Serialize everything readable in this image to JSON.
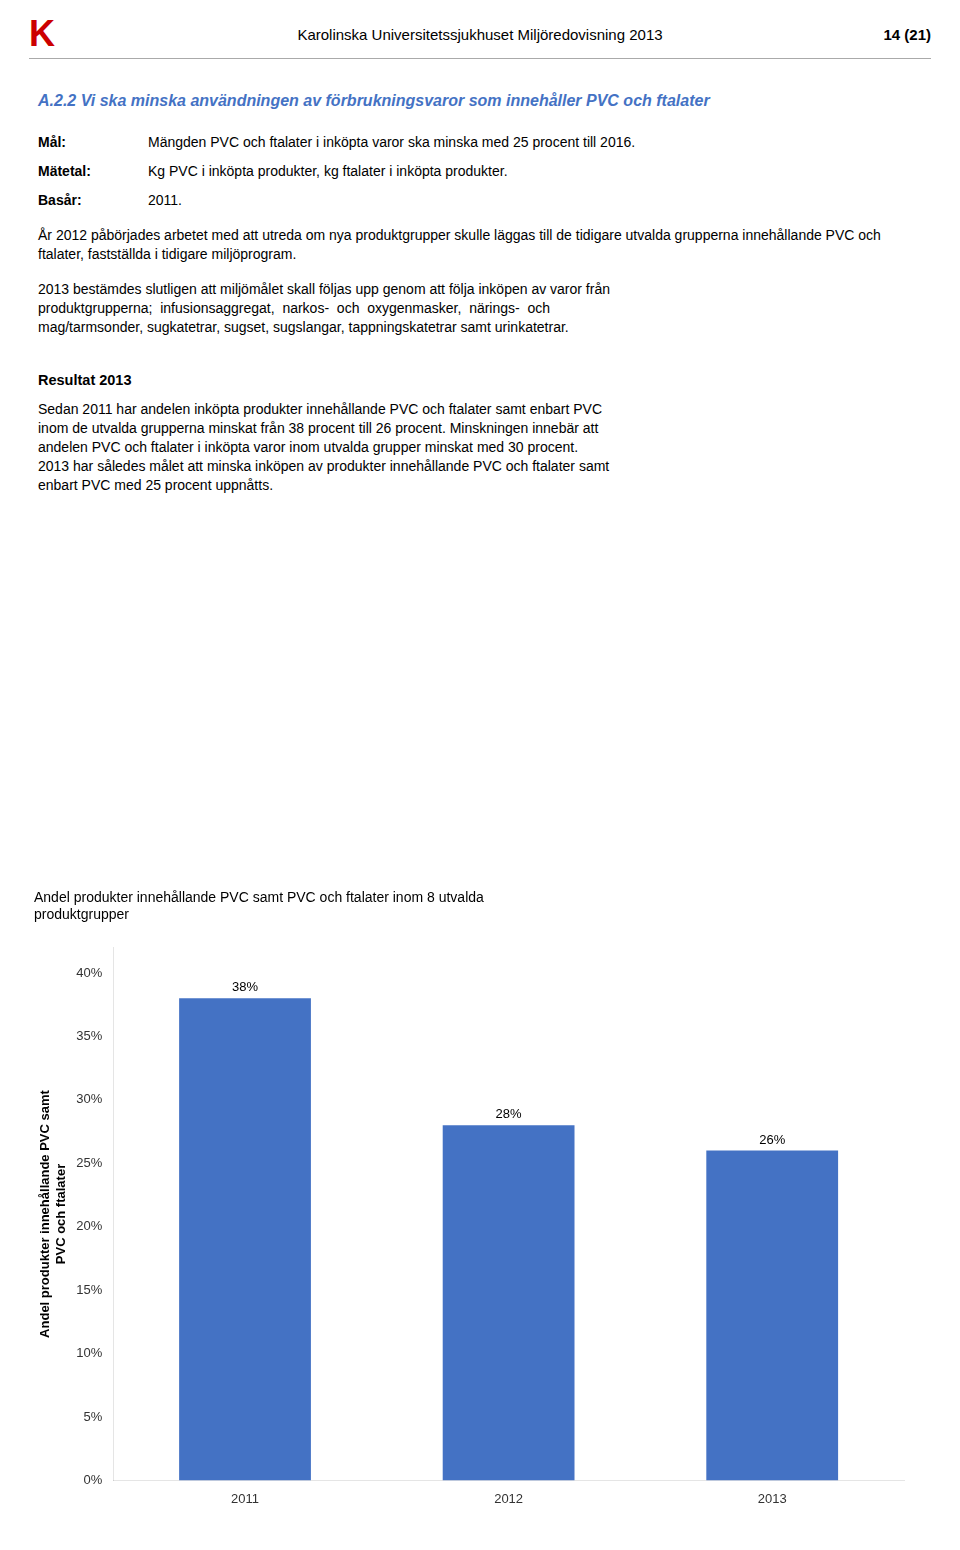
{
  "header": "Karolinska Universitetssjukhuset Miljöredovisning 2013",
  "page_number": "14 (21)",
  "logo": "K",
  "heading": "A.2.2 Vi ska minska användningen av förbrukningsvaror som innehåller PVC och ftalater",
  "heading_color": "#4472C4",
  "facts": [
    {
      "label": "Mål:",
      "text": "Mängden PVC och ftalater i inköpta varor ska minska med 25 procent till 2016."
    },
    {
      "label": "Mätetal:",
      "text": "Kg PVC i inköpta produkter, kg ftalater i inköpta produkter."
    },
    {
      "label": "Basår:",
      "text": "2011."
    }
  ],
  "paragraph": "År 2012 påbörjades arbetet med att utreda om nya produktgrupper skulle läggas till de tidigare utvalda grupperna innehållande PVC och ftalater, fastställda i tidigare miljöprogram.",
  "paragraph_lines": [
    "2013 bestämdes slutligen att miljömålet skall följas upp genom att följa inköpen av varor från",
    "produktgrupperna;  infusionsaggregat,  narkos-  och  oxygenmasker,  närings-  och",
    "mag/tarmsonder, sugkatetrar, sugset, sugslangar, tappningskatetrar samt urinkatetrar."
  ],
  "result_heading": "Resultat 2013",
  "result_lines": [
    "Sedan 2011 har andelen inköpta produkter innehållande PVC och ftalater samt enbart PVC",
    "inom de utvalda grupperna minskat från 38 procent till 26 procent. Minskningen innebär att",
    "andelen PVC och ftalater i inköpta varor inom utvalda grupper minskat med 30 procent.",
    "2013 har således målet att minska inköpen av produkter innehållande PVC och ftalater samt",
    "enbart PVC med 25 procent uppnåtts."
  ],
  "chart_data": {
    "type": "bar",
    "title": [
      "Andel produkter innehållande PVC samt PVC och ftalater inom 8 utvalda",
      "produktgrupper"
    ],
    "ylabel": [
      "Andel produkter innehållande PVC samt",
      "PVC och ftalater"
    ],
    "categories": [
      "2011",
      "2012",
      "2013"
    ],
    "values": [
      0.38,
      0.28,
      0.26
    ],
    "value_labels": [
      "38%",
      "28%",
      "26%"
    ],
    "data_labels": true,
    "color": "#4472C4",
    "ylim": [
      0,
      0.42
    ],
    "yticks": [
      {
        "value": 0.0,
        "label": "0%"
      },
      {
        "value": 0.05,
        "label": "5%"
      },
      {
        "value": 0.1,
        "label": "10%"
      },
      {
        "value": 0.15,
        "label": "15%"
      },
      {
        "value": 0.2,
        "label": "20%"
      },
      {
        "value": 0.25,
        "label": "25%"
      },
      {
        "value": 0.3,
        "label": "30%"
      },
      {
        "value": 0.35,
        "label": "35%"
      },
      {
        "value": 0.4,
        "label": "40%"
      }
    ],
    "grid": false
  }
}
